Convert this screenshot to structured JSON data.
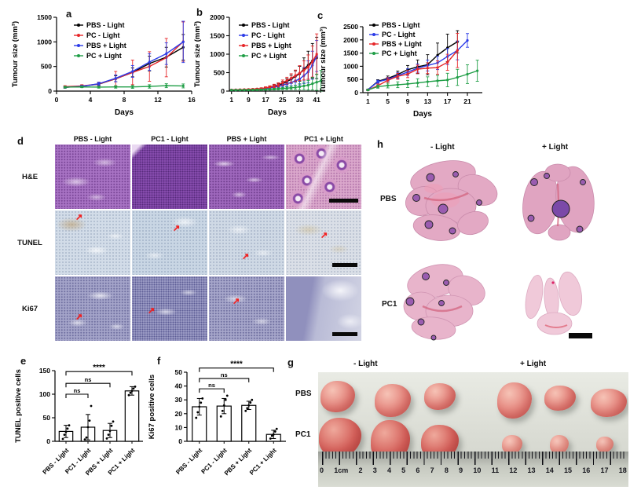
{
  "panel_letters": {
    "a": "a",
    "b": "b",
    "c": "c",
    "d": "d",
    "e": "e",
    "f": "f",
    "g": "g",
    "h": "h"
  },
  "chart_data": [
    {
      "type": "line",
      "panel": "a",
      "xlabel": "Days",
      "ylabel": "Tumour size (mm³)",
      "xlim": [
        0,
        16
      ],
      "xticks": [
        0,
        4,
        8,
        12,
        16
      ],
      "ylim": [
        0,
        1500
      ],
      "yticks": [
        0,
        500,
        1000,
        1500
      ],
      "legend_position": "top-left",
      "series": [
        {
          "name": "PBS - Light",
          "color": "#000000",
          "x": [
            1,
            3,
            5,
            7,
            9,
            11,
            13,
            15
          ],
          "values": [
            75,
            100,
            140,
            250,
            380,
            560,
            690,
            890
          ],
          "err": [
            15,
            20,
            30,
            60,
            90,
            150,
            200,
            260
          ]
        },
        {
          "name": "PC - Light",
          "color": "#e62629",
          "x": [
            1,
            3,
            5,
            7,
            9,
            11,
            13,
            15
          ],
          "values": [
            90,
            105,
            145,
            250,
            380,
            500,
            680,
            1005
          ],
          "err": [
            20,
            25,
            35,
            150,
            250,
            300,
            390,
            400
          ]
        },
        {
          "name": "PBS + Light",
          "color": "#2c3ce8",
          "x": [
            1,
            3,
            5,
            7,
            9,
            11,
            13,
            15
          ],
          "values": [
            78,
            95,
            150,
            260,
            400,
            590,
            760,
            1000
          ],
          "err": [
            15,
            20,
            30,
            70,
            120,
            170,
            220,
            420
          ]
        },
        {
          "name": "PC + Light",
          "color": "#1f9e46",
          "x": [
            1,
            3,
            5,
            7,
            9,
            11,
            13,
            15
          ],
          "values": [
            80,
            85,
            80,
            85,
            85,
            95,
            110,
            105
          ],
          "err": [
            15,
            15,
            20,
            25,
            30,
            35,
            40,
            40
          ]
        }
      ]
    },
    {
      "type": "line",
      "panel": "b",
      "xlabel": "Days",
      "ylabel": "Tumour size (mm³)",
      "xlim": [
        0,
        45
      ],
      "xticks": [
        1,
        9,
        17,
        25,
        33,
        41
      ],
      "ylim": [
        0,
        2000
      ],
      "yticks": [
        0,
        500,
        1000,
        1500,
        2000
      ],
      "legend_position": "top-left",
      "series": [
        {
          "name": "PBS - Light",
          "color": "#000000",
          "x": [
            1,
            3,
            5,
            7,
            9,
            11,
            13,
            15,
            17,
            19,
            21,
            23,
            25,
            27,
            29,
            31,
            33,
            35,
            37,
            39,
            41
          ],
          "values": [
            30,
            32,
            35,
            38,
            40,
            44,
            50,
            60,
            80,
            100,
            130,
            160,
            200,
            255,
            320,
            400,
            470,
            600,
            700,
            820,
            900
          ],
          "err": [
            8,
            8,
            10,
            10,
            12,
            14,
            16,
            20,
            25,
            30,
            40,
            50,
            60,
            80,
            110,
            150,
            200,
            300,
            380,
            470,
            560
          ]
        },
        {
          "name": "PC - Light",
          "color": "#2c3ce8",
          "x": [
            1,
            3,
            5,
            7,
            9,
            11,
            13,
            15,
            17,
            19,
            21,
            23,
            25,
            27,
            29,
            31,
            33,
            35,
            37,
            39,
            41
          ],
          "values": [
            28,
            30,
            32,
            35,
            38,
            40,
            44,
            52,
            70,
            88,
            108,
            135,
            160,
            200,
            230,
            280,
            330,
            420,
            520,
            700,
            950
          ],
          "err": [
            8,
            8,
            9,
            10,
            11,
            13,
            15,
            18,
            22,
            28,
            35,
            45,
            55,
            70,
            90,
            120,
            160,
            220,
            300,
            380,
            420
          ]
        },
        {
          "name": "PBS + Light",
          "color": "#e62629",
          "x": [
            1,
            3,
            5,
            7,
            9,
            11,
            13,
            15,
            17,
            19,
            21,
            23,
            25,
            27,
            29,
            31,
            33,
            35,
            37,
            39,
            41
          ],
          "values": [
            32,
            35,
            38,
            42,
            46,
            52,
            58,
            68,
            88,
            108,
            140,
            170,
            230,
            285,
            350,
            420,
            490,
            560,
            650,
            800,
            1000
          ],
          "err": [
            8,
            9,
            10,
            12,
            13,
            15,
            18,
            22,
            28,
            35,
            45,
            55,
            70,
            90,
            120,
            150,
            200,
            260,
            330,
            420,
            550
          ]
        },
        {
          "name": "PC + Light",
          "color": "#1f9e46",
          "x": [
            1,
            3,
            5,
            7,
            9,
            11,
            13,
            15,
            17,
            19,
            21,
            23,
            25,
            27,
            29,
            31,
            33,
            35,
            37,
            39,
            41,
            43
          ],
          "values": [
            26,
            27,
            28,
            29,
            30,
            32,
            34,
            38,
            42,
            48,
            54,
            60,
            70,
            78,
            88,
            100,
            118,
            140,
            160,
            200,
            240,
            280
          ],
          "err": [
            6,
            6,
            7,
            7,
            8,
            9,
            10,
            12,
            14,
            17,
            20,
            25,
            30,
            38,
            48,
            60,
            80,
            100,
            130,
            170,
            220,
            280
          ]
        }
      ]
    },
    {
      "type": "line",
      "panel": "c",
      "xlabel": "Days",
      "ylabel": "Tumour size (mm³)",
      "xlim": [
        0,
        24
      ],
      "xticks": [
        1,
        5,
        9,
        13,
        17,
        21
      ],
      "ylim": [
        0,
        2500
      ],
      "yticks": [
        0,
        500,
        1000,
        1500,
        2000,
        2500
      ],
      "legend_position": "top-left",
      "series": [
        {
          "name": "PBS - Light",
          "color": "#000000",
          "x": [
            1,
            3,
            5,
            7,
            9,
            11,
            13,
            15,
            17,
            19
          ],
          "values": [
            110,
            430,
            540,
            690,
            870,
            980,
            1060,
            1420,
            1700,
            1930
          ],
          "err": [
            20,
            60,
            90,
            130,
            160,
            260,
            380,
            460,
            520,
            420
          ]
        },
        {
          "name": "PC - Light",
          "color": "#2c3ce8",
          "x": [
            1,
            3,
            5,
            7,
            9,
            11,
            13,
            15,
            17,
            19,
            21
          ],
          "values": [
            105,
            415,
            505,
            650,
            780,
            930,
            1030,
            1130,
            1370,
            1600,
            1980
          ],
          "err": [
            20,
            55,
            75,
            105,
            125,
            155,
            205,
            255,
            305,
            355,
            260
          ]
        },
        {
          "name": "PBS + Light",
          "color": "#e62629",
          "x": [
            1,
            3,
            5,
            7,
            9,
            11,
            13,
            15,
            17,
            19
          ],
          "values": [
            100,
            265,
            470,
            620,
            705,
            890,
            930,
            950,
            1150,
            1600
          ],
          "err": [
            20,
            65,
            95,
            115,
            135,
            155,
            205,
            255,
            305,
            650
          ]
        },
        {
          "name": "PC + Light",
          "color": "#1f9e46",
          "x": [
            1,
            3,
            5,
            7,
            9,
            11,
            13,
            15,
            17,
            19,
            21,
            23
          ],
          "values": [
            100,
            230,
            270,
            300,
            330,
            370,
            415,
            450,
            480,
            580,
            700,
            830
          ],
          "err": [
            20,
            60,
            90,
            110,
            135,
            155,
            185,
            205,
            255,
            305,
            355,
            400
          ]
        }
      ]
    },
    {
      "type": "bar",
      "panel": "e",
      "ylabel": "TUNEL positive cells",
      "ylim": [
        0,
        150
      ],
      "yticks": [
        0,
        50,
        100,
        150
      ],
      "categories": [
        "PBS - Light",
        "PC1 - Light",
        "PBS + Light",
        "PC1 + Light"
      ],
      "values": [
        21,
        30,
        23,
        107
      ],
      "err": [
        13,
        27,
        15,
        9
      ],
      "points": [
        [
          5,
          14,
          20,
          27,
          34
        ],
        [
          4,
          8,
          30,
          44,
          75
        ],
        [
          6,
          14,
          22,
          33,
          42
        ],
        [
          98,
          103,
          107,
          112,
          116
        ]
      ],
      "brackets": [
        {
          "from": 0,
          "to": 1,
          "y": 100,
          "label": "ns"
        },
        {
          "from": 0,
          "to": 2,
          "y": 123,
          "label": "ns"
        },
        {
          "from": 0,
          "to": 3,
          "y": 148,
          "label": "****"
        }
      ]
    },
    {
      "type": "bar",
      "panel": "f",
      "ylabel": "Ki67 positive cells",
      "ylim": [
        0,
        50
      ],
      "yticks": [
        0,
        10,
        20,
        30,
        40,
        50
      ],
      "categories": [
        "PBS - Light",
        "PC1 - Light",
        "PBS + Light",
        "PC1 + Light"
      ],
      "values": [
        25,
        25.5,
        26,
        5
      ],
      "err": [
        6,
        5.5,
        3,
        3
      ],
      "points": [
        [
          17,
          21,
          25,
          28,
          31
        ],
        [
          18,
          22,
          26,
          30,
          33
        ],
        [
          22,
          24,
          26,
          28,
          30
        ],
        [
          2,
          4,
          5,
          7,
          9
        ]
      ],
      "brackets": [
        {
          "from": 0,
          "to": 1,
          "y": 38,
          "label": "ns"
        },
        {
          "from": 0,
          "to": 2,
          "y": 45.5,
          "label": "ns"
        },
        {
          "from": 0,
          "to": 3,
          "y": 53,
          "label": "****"
        }
      ]
    }
  ],
  "panel_d": {
    "col_headers": [
      "PBS - Light",
      "PC1 - Light",
      "PBS + Light",
      "PC1 + Light"
    ],
    "row_labels": [
      "H&E",
      "TUNEL",
      "Ki67"
    ]
  },
  "panel_h": {
    "col_headers": [
      "- Light",
      "+ Light"
    ],
    "row_labels": [
      "PBS",
      "PC1"
    ]
  },
  "panel_g": {
    "col_headers": [
      "- Light",
      "+ Light"
    ],
    "row_labels": [
      "PBS",
      "PC1"
    ],
    "ruler_numbers": [
      "0",
      "1cm",
      "2",
      "3",
      "4",
      "5",
      "6",
      "7",
      "8",
      "9",
      "10",
      "11",
      "12",
      "13",
      "14",
      "15",
      "16",
      "17",
      "18"
    ]
  }
}
